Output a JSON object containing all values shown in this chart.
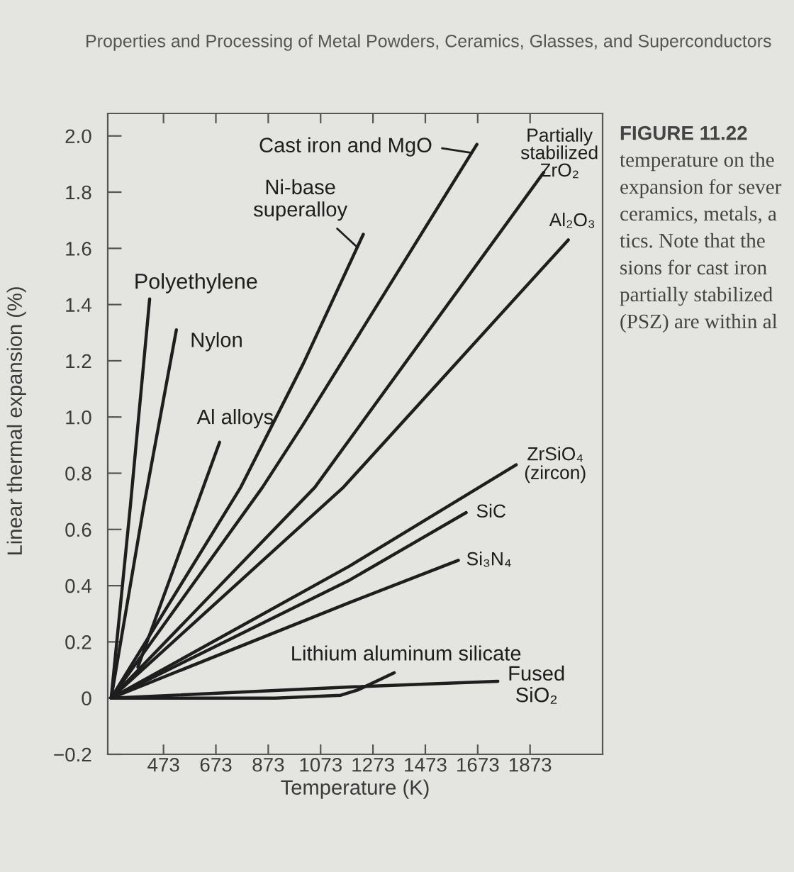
{
  "chart_data": {
    "type": "line",
    "title": "Properties and Processing of Metal Powders, Ceramics, Glasses, and Superconductors",
    "xlabel": "Temperature (K)",
    "ylabel": "Linear thermal expansion (%)",
    "xlim": [
      260,
      2150
    ],
    "ylim": [
      -0.2,
      2.08
    ],
    "xticks": [
      473,
      673,
      873,
      1073,
      1273,
      1473,
      1673,
      1873
    ],
    "yticks": [
      {
        "value": -0.2,
        "label": "−0.2"
      },
      0,
      0.2,
      0.4,
      0.6,
      0.8,
      {
        "value": 1,
        "label": "1.0"
      },
      1.2,
      1.4,
      1.6,
      1.8,
      {
        "value": 2,
        "label": "2.0"
      }
    ],
    "series": [
      {
        "name": "Polyethylene",
        "color": "#1e1e1e",
        "x": [
          273,
          346,
          420
        ],
        "values": [
          0,
          0.68,
          1.42
        ]
      },
      {
        "name": "Nylon",
        "color": "#1e1e1e",
        "x": [
          273,
          397,
          522
        ],
        "values": [
          0,
          0.68,
          1.31
        ]
      },
      {
        "name": "Al alloys",
        "color": "#1e1e1e",
        "x": [
          375,
          687
        ],
        "values": [
          0.11,
          0.91
        ]
      },
      {
        "name": "Ni-base\nsuperalloy",
        "color": "#1e1e1e",
        "x": [
          273,
          768,
          1007,
          1236
        ],
        "values": [
          0,
          0.75,
          1.19,
          1.65
        ]
      },
      {
        "name": "Cast iron and MgO",
        "color": "#1e1e1e",
        "x": [
          273,
          851,
          1004,
          1670
        ],
        "values": [
          0,
          0.75,
          0.97,
          1.97
        ]
      },
      {
        "name": "Partially\nstabilized\nZrO₂",
        "color": "#1e1e1e",
        "x": [
          273,
          1051,
          1925
        ],
        "values": [
          0,
          0.75,
          1.87
        ]
      },
      {
        "name": "Al₂O₃",
        "color": "#1e1e1e",
        "x": [
          273,
          1160,
          2019
        ],
        "values": [
          0,
          0.75,
          1.63
        ]
      },
      {
        "name": "ZrSiO₄\n(zircon)",
        "color": "#1e1e1e",
        "x": [
          273,
          1184,
          1820
        ],
        "values": [
          0,
          0.47,
          0.83
        ]
      },
      {
        "name": "SiC",
        "color": "#1e1e1e",
        "x": [
          273,
          1184,
          1629
        ],
        "values": [
          0,
          0.42,
          0.66
        ]
      },
      {
        "name": "Si₃N₄",
        "color": "#1e1e1e",
        "x": [
          273,
          1184,
          1599
        ],
        "values": [
          0,
          0.34,
          0.49
        ]
      },
      {
        "name": "Lithium aluminum silicate",
        "color": "#1e1e1e",
        "x": [
          273,
          500,
          900,
          1150,
          1218,
          1354
        ],
        "values": [
          0,
          0,
          0,
          0.01,
          0.03,
          0.09
        ]
      },
      {
        "name": "Fused\nSiO₂",
        "color": "#1e1e1e",
        "x": [
          273,
          1201,
          1750
        ],
        "values": [
          0,
          0.04,
          0.06
        ]
      }
    ],
    "annotations": [
      "FIGURE 11.22",
      "temperature on the",
      "expansion for sever",
      "ceramics, metals, a",
      "tics. Note that the",
      "sions for cast iron",
      "partially stabilized",
      "(PSZ) are within al"
    ]
  }
}
